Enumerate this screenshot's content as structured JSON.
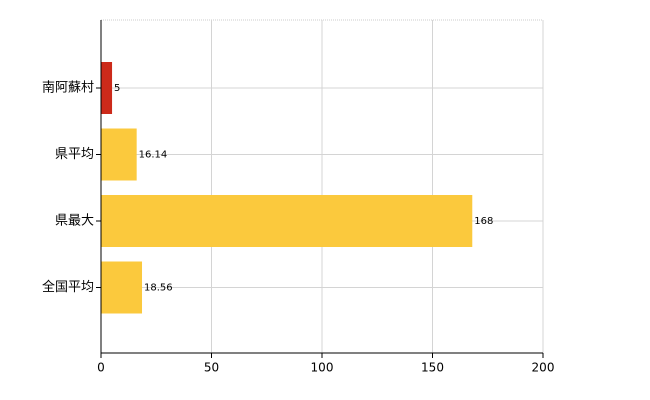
{
  "chart_data": {
    "type": "hbar",
    "categories": [
      "南阿蘇村",
      "県平均",
      "県最大",
      "全国平均"
    ],
    "values": [
      5,
      16.14,
      168,
      18.56
    ],
    "colors": [
      "#cc2a1a",
      "#fbc93d",
      "#fbc93d",
      "#fbc93d"
    ],
    "xlim": [
      0,
      200
    ],
    "xticks": [
      0,
      50,
      100,
      150,
      200
    ],
    "grid": true
  }
}
